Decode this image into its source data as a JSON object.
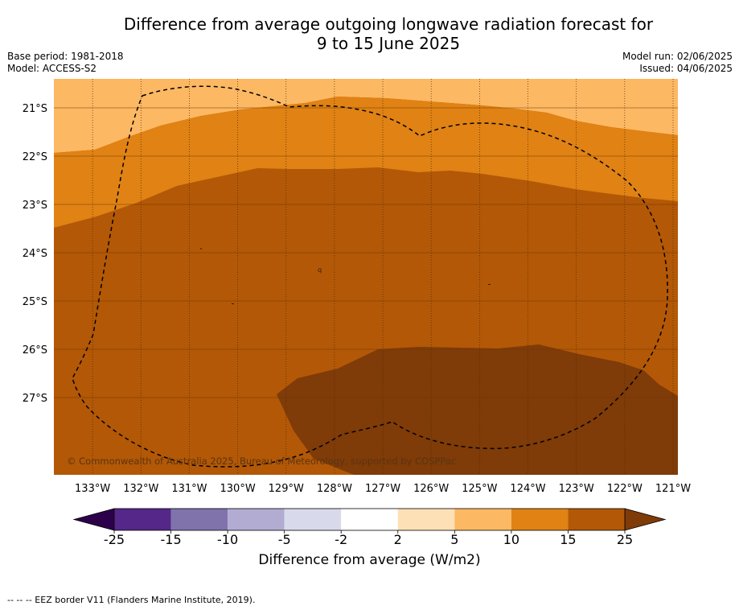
{
  "header": {
    "title_line1": "Difference from average outgoing longwave radiation forecast for",
    "title_line2": "9 to 15 June 2025",
    "base_period": "Base period: 1981-2018",
    "model": "Model: ACCESS-S2",
    "model_run": "Model run: 02/06/2025",
    "issued": "Issued: 04/06/2025"
  },
  "copyright": "© Commonwealth of Australia 2025, Bureau of Meteorology, supported by COSPPac",
  "footer": "-- -- -- EEZ border V11 (Flanders Marine Institute, 2019).",
  "colorbar": {
    "label": "Difference from average (W/m2)",
    "ticks": [
      "-25",
      "-15",
      "-10",
      "-5",
      "-2",
      "2",
      "5",
      "10",
      "15",
      "25"
    ],
    "colors": [
      "#542788",
      "#8073ac",
      "#b2abd2",
      "#d8daeb",
      "#ffffff",
      "#fee0b6",
      "#fdb863",
      "#e08214",
      "#b35806"
    ],
    "under_color": "#2d004b",
    "over_color": "#7f3b08"
  },
  "chart_data": {
    "type": "heatmap",
    "title": "Difference from average outgoing longwave radiation forecast for 9 to 15 June 2025",
    "x_ticks": [
      "133°W",
      "132°W",
      "131°W",
      "130°W",
      "129°W",
      "128°W",
      "127°W",
      "126°W",
      "125°W",
      "124°W",
      "123°W",
      "122°W",
      "121°W"
    ],
    "y_ticks": [
      "21°S",
      "22°S",
      "23°S",
      "24°S",
      "25°S",
      "26°S",
      "27°S"
    ],
    "xlim": [
      -133.8,
      -120.9
    ],
    "ylim": [
      -28.6,
      -20.4
    ],
    "grid": true,
    "units": "W/m2",
    "levels": [
      -25,
      -15,
      -10,
      -5,
      -2,
      2,
      5,
      10,
      15,
      25
    ],
    "regions": [
      {
        "range": "5 to 10",
        "color": "#fdb863",
        "location": "north"
      },
      {
        "range": "10 to 15",
        "color": "#e08214",
        "location": "north-central band"
      },
      {
        "range": "15 to 25",
        "color": "#b35806",
        "location": "central"
      },
      {
        "range": "> 25",
        "color": "#7f3b08",
        "location": "south-east"
      }
    ]
  }
}
